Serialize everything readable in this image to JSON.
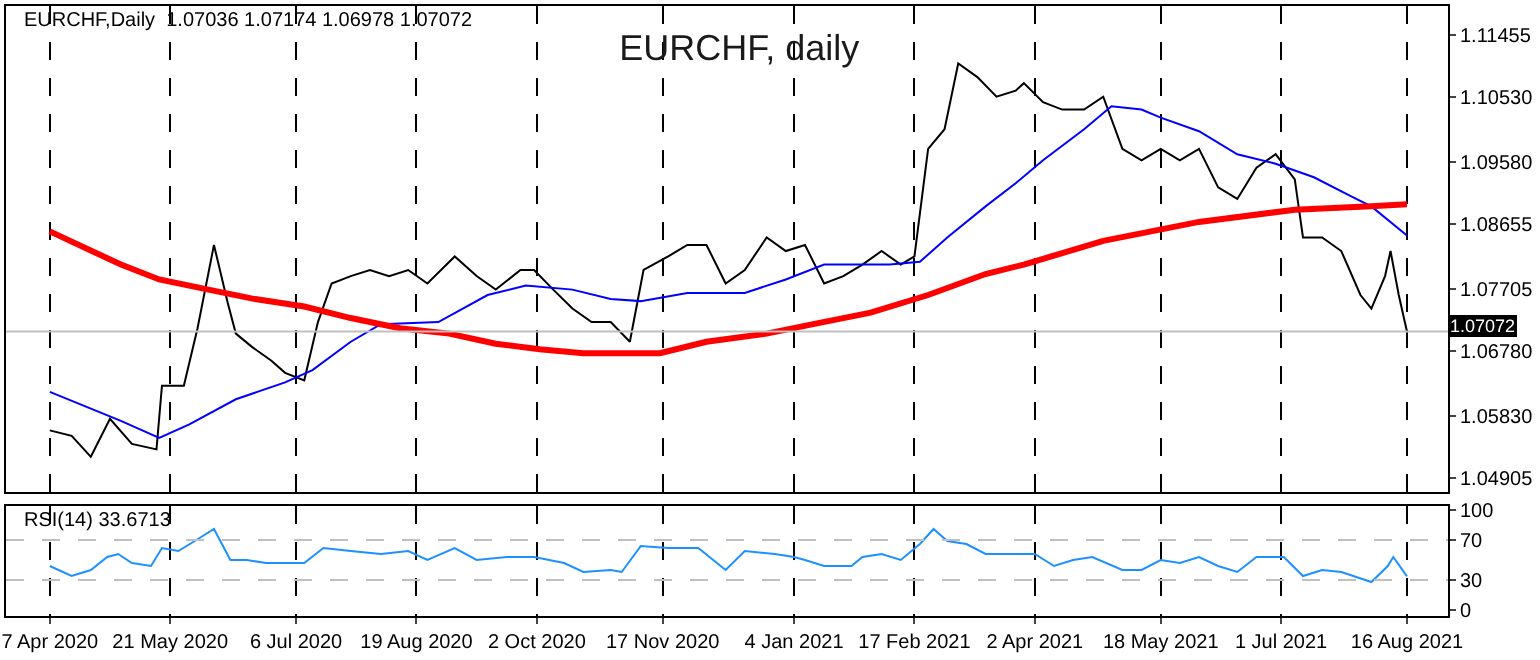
{
  "chart_data": [
    {
      "type": "line",
      "title": "EURCHF, daily",
      "annotations": [
        "EURCHF,Daily  1.07036 1.07174 1.06978 1.07072"
      ],
      "xlim": [
        "2020-03-22",
        "2021-08-31"
      ],
      "xticks": [
        {
          "value": "2020-04-07",
          "label": null
        },
        {
          "value": "2020-05-21",
          "label": null
        },
        {
          "value": "2020-07-06",
          "label": null
        },
        {
          "value": "2020-08-19",
          "label": null
        },
        {
          "value": "2020-10-02",
          "label": null
        },
        {
          "value": "2020-11-17",
          "label": null
        },
        {
          "value": "2021-01-04",
          "label": null
        },
        {
          "value": "2021-02-17",
          "label": null
        },
        {
          "value": "2021-04-02",
          "label": null
        },
        {
          "value": "2021-05-18",
          "label": null
        },
        {
          "value": "2021-07-01",
          "label": null
        },
        {
          "value": "2021-08-16",
          "label": null
        }
      ],
      "ylim": [
        1.047,
        1.1188
      ],
      "yticks": [
        {
          "value": 1.04905,
          "label": "1.04905"
        },
        {
          "value": 1.0583,
          "label": "1.05830"
        },
        {
          "value": 1.0678,
          "label": "1.06780"
        },
        {
          "value": 1.07705,
          "label": "1.07705"
        },
        {
          "value": 1.08655,
          "label": "1.08655"
        },
        {
          "value": 1.0958,
          "label": "1.09580"
        },
        {
          "value": 1.1053,
          "label": "1.10530"
        },
        {
          "value": 1.11455,
          "label": "1.11455"
        }
      ],
      "tick_labels": "y",
      "grid": "x",
      "line_style": "solid",
      "marker": "none",
      "ref_lines": [
        {
          "axis": "y",
          "value": 1.07072,
          "label": "1.07072",
          "color": "#c0c0c0"
        }
      ],
      "series": [
        {
          "color": "#000000",
          "x": [
            "2020-04-07",
            "2020-04-15",
            "2020-04-22",
            "2020-04-29",
            "2020-05-07",
            "2020-05-16",
            "2020-05-18",
            "2020-05-26",
            "2020-05-31",
            "2020-06-06",
            "2020-06-11",
            "2020-06-14",
            "2020-06-20",
            "2020-06-27",
            "2020-07-02",
            "2020-07-09",
            "2020-07-14",
            "2020-07-19",
            "2020-07-26",
            "2020-08-02",
            "2020-08-09",
            "2020-08-16",
            "2020-08-23",
            "2020-09-02",
            "2020-09-10",
            "2020-09-17",
            "2020-09-26",
            "2020-10-01",
            "2020-10-08",
            "2020-10-15",
            "2020-10-22",
            "2020-10-29",
            "2020-11-05",
            "2020-11-10",
            "2020-11-19",
            "2020-11-26",
            "2020-12-03",
            "2020-12-10",
            "2020-12-17",
            "2020-12-25",
            "2021-01-01",
            "2021-01-08",
            "2021-01-15",
            "2021-01-22",
            "2021-01-29",
            "2021-02-05",
            "2021-02-12",
            "2021-02-17",
            "2021-02-22",
            "2021-02-28",
            "2021-03-05",
            "2021-03-12",
            "2021-03-19",
            "2021-03-26",
            "2021-03-29",
            "2021-04-05",
            "2021-04-12",
            "2021-04-20",
            "2021-04-27",
            "2021-05-04",
            "2021-05-11",
            "2021-05-18",
            "2021-05-25",
            "2021-06-01",
            "2021-06-08",
            "2021-06-15",
            "2021-06-22",
            "2021-06-29",
            "2021-07-06",
            "2021-07-09",
            "2021-07-16",
            "2021-07-23",
            "2021-07-30",
            "2021-08-03",
            "2021-08-08",
            "2021-08-10",
            "2021-08-13",
            "2021-08-16"
          ],
          "values": [
            1.0561,
            1.0553,
            1.0522,
            1.0578,
            1.0541,
            1.0533,
            1.0627,
            1.0627,
            1.0712,
            1.0835,
            1.075,
            1.0704,
            1.0684,
            1.0664,
            1.0646,
            1.0635,
            1.0721,
            1.0778,
            1.0789,
            1.0798,
            1.0789,
            1.0798,
            1.0778,
            1.0818,
            1.0789,
            1.0769,
            1.0798,
            1.0798,
            1.0769,
            1.0741,
            1.0721,
            1.0721,
            1.0692,
            1.0798,
            1.0818,
            1.0835,
            1.0835,
            1.0778,
            1.0798,
            1.0846,
            1.0826,
            1.0835,
            1.0778,
            1.0789,
            1.0806,
            1.0826,
            1.0806,
            1.0818,
            1.0977,
            1.1006,
            1.1103,
            1.1083,
            1.1054,
            1.1063,
            1.1074,
            1.1046,
            1.1035,
            1.1035,
            1.1054,
            1.0977,
            1.096,
            1.0977,
            1.096,
            1.0977,
            1.092,
            1.0903,
            1.0949,
            1.0969,
            1.0932,
            1.0846,
            1.0846,
            1.0826,
            1.0761,
            1.0741,
            1.0789,
            1.0826,
            1.0761,
            1.07072
          ]
        },
        {
          "color": "#0000ff",
          "x": [
            "2020-04-07",
            "2020-05-03",
            "2020-05-17",
            "2020-05-28",
            "2020-06-14",
            "2020-07-02",
            "2020-07-12",
            "2020-07-26",
            "2020-08-06",
            "2020-08-27",
            "2020-09-14",
            "2020-09-28",
            "2020-10-15",
            "2020-10-29",
            "2020-11-09",
            "2020-11-26",
            "2020-12-17",
            "2021-01-01",
            "2021-01-15",
            "2021-02-08",
            "2021-02-19",
            "2021-03-01",
            "2021-03-15",
            "2021-03-26",
            "2021-04-05",
            "2021-04-20",
            "2021-04-30",
            "2021-05-11",
            "2021-05-18",
            "2021-06-01",
            "2021-06-15",
            "2021-06-29",
            "2021-07-13",
            "2021-07-27",
            "2021-08-03",
            "2021-08-16"
          ],
          "values": [
            1.0618,
            1.0575,
            1.055,
            1.057,
            1.0607,
            1.0632,
            1.065,
            1.0692,
            1.0718,
            1.0721,
            1.0761,
            1.0775,
            1.0769,
            1.0755,
            1.0752,
            1.0764,
            1.0764,
            1.0784,
            1.0806,
            1.0806,
            1.081,
            1.0846,
            1.0892,
            1.0926,
            1.096,
            1.1006,
            1.104,
            1.1035,
            1.1023,
            1.1003,
            1.0969,
            1.0955,
            1.0935,
            1.0906,
            1.0892,
            1.0849
          ]
        },
        {
          "color": "#ff0000",
          "x": [
            "2020-04-07",
            "2020-05-03",
            "2020-05-17",
            "2020-06-04",
            "2020-06-21",
            "2020-07-09",
            "2020-07-26",
            "2020-08-13",
            "2020-08-31",
            "2020-09-17",
            "2020-10-03",
            "2020-10-19",
            "2020-11-05",
            "2020-11-16",
            "2020-12-03",
            "2020-12-25",
            "2021-01-11",
            "2021-02-01",
            "2021-02-22",
            "2021-03-15",
            "2021-03-29",
            "2021-04-27",
            "2021-06-01",
            "2021-07-06",
            "2021-08-03",
            "2021-08-16"
          ],
          "values": [
            1.0855,
            1.0806,
            1.0784,
            1.0769,
            1.0755,
            1.0744,
            1.0727,
            1.0712,
            1.0704,
            1.0689,
            1.0681,
            1.0675,
            1.0675,
            1.0675,
            1.0692,
            1.0704,
            1.0718,
            1.0735,
            1.0761,
            1.0792,
            1.0806,
            1.0841,
            1.0869,
            1.0887,
            1.0892,
            1.0895
          ]
        }
      ]
    },
    {
      "type": "line",
      "annotations": [
        "RSI(14) 33.6713"
      ],
      "xlim": [
        "2020-03-22",
        "2021-08-31"
      ],
      "xticks": [
        {
          "value": "2020-04-07",
          "label": "7 Apr 2020"
        },
        {
          "value": "2020-05-21",
          "label": "21 May 2020"
        },
        {
          "value": "2020-07-06",
          "label": "6 Jul 2020"
        },
        {
          "value": "2020-08-19",
          "label": "19 Aug 2020"
        },
        {
          "value": "2020-10-02",
          "label": "2 Oct 2020"
        },
        {
          "value": "2020-11-17",
          "label": "17 Nov 2020"
        },
        {
          "value": "2021-01-04",
          "label": "4 Jan 2021"
        },
        {
          "value": "2021-02-17",
          "label": "17 Feb 2021"
        },
        {
          "value": "2021-04-02",
          "label": "2 Apr 2021"
        },
        {
          "value": "2021-05-18",
          "label": "18 May 2021"
        },
        {
          "value": "2021-07-01",
          "label": "1 Jul 2021"
        },
        {
          "value": "2021-08-16",
          "label": "16 Aug 2021"
        }
      ],
      "ylim": [
        -6,
        104
      ],
      "yticks": [
        0,
        30,
        70,
        100
      ],
      "grid": "x",
      "line_style": "solid",
      "marker": "none",
      "ref_lines": [
        {
          "axis": "y",
          "value": 70,
          "color": "#c0c0c0",
          "line_style": "dashed"
        },
        {
          "axis": "y",
          "value": 30,
          "color": "#c0c0c0",
          "line_style": "dashed"
        }
      ],
      "series": [
        {
          "color": "#1e90ff",
          "x": [
            "2020-04-07",
            "2020-04-15",
            "2020-04-22",
            "2020-04-28",
            "2020-05-02",
            "2020-05-07",
            "2020-05-14",
            "2020-05-18",
            "2020-05-24",
            "2020-05-30",
            "2020-06-06",
            "2020-06-12",
            "2020-06-18",
            "2020-06-25",
            "2020-07-02",
            "2020-07-09",
            "2020-07-16",
            "2020-07-26",
            "2020-08-06",
            "2020-08-16",
            "2020-08-23",
            "2020-09-02",
            "2020-09-10",
            "2020-09-21",
            "2020-10-01",
            "2020-10-12",
            "2020-10-19",
            "2020-10-29",
            "2020-11-02",
            "2020-11-09",
            "2020-11-19",
            "2020-11-30",
            "2020-12-10",
            "2020-12-17",
            "2020-12-28",
            "2021-01-04",
            "2021-01-08",
            "2021-01-15",
            "2021-01-25",
            "2021-01-29",
            "2021-02-05",
            "2021-02-12",
            "2021-02-19",
            "2021-02-24",
            "2021-03-01",
            "2021-03-08",
            "2021-03-15",
            "2021-03-26",
            "2021-04-02",
            "2021-04-09",
            "2021-04-16",
            "2021-04-23",
            "2021-05-04",
            "2021-05-11",
            "2021-05-18",
            "2021-05-25",
            "2021-06-01",
            "2021-06-08",
            "2021-06-15",
            "2021-06-22",
            "2021-07-02",
            "2021-07-09",
            "2021-07-16",
            "2021-07-23",
            "2021-08-03",
            "2021-08-09",
            "2021-08-11",
            "2021-08-16"
          ],
          "values": [
            44,
            34,
            40,
            53,
            56,
            47,
            44,
            62,
            59,
            69,
            81,
            50,
            50,
            47,
            47,
            47,
            62,
            59,
            56,
            59,
            50,
            62,
            50,
            53,
            53,
            47,
            38,
            40,
            38,
            64,
            62,
            62,
            40,
            59,
            56,
            53,
            50,
            44,
            44,
            53,
            56,
            50,
            66,
            81,
            69,
            66,
            56,
            56,
            56,
            44,
            50,
            53,
            40,
            40,
            50,
            47,
            53,
            44,
            38,
            53,
            53,
            34,
            40,
            38,
            28,
            44,
            53,
            33.6713
          ]
        }
      ]
    }
  ]
}
